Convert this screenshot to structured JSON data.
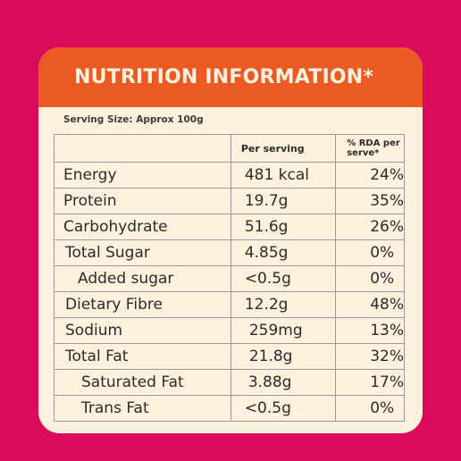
{
  "header": {
    "title": "NUTRITION INFORMATION*"
  },
  "serving_size": "Serving Size: Approx 100g",
  "table": {
    "headers": [
      "",
      "Per serving",
      "% RDA per serve*"
    ],
    "rows": [
      {
        "nutrient": "Energy",
        "per_serving": "481 kcal",
        "rda": "24%",
        "indent": 0
      },
      {
        "nutrient": "Protein",
        "per_serving": "19.7g",
        "rda": "35%",
        "indent": 0
      },
      {
        "nutrient": "Carbohydrate",
        "per_serving": "51.6g",
        "rda": "26%",
        "indent": 0
      },
      {
        "nutrient": "Total Sugar",
        "per_serving": "4.85g",
        "rda": "0%",
        "indent": 1
      },
      {
        "nutrient": "Added sugar",
        "per_serving": "<0.5g",
        "rda": "0%",
        "indent": 2
      },
      {
        "nutrient": "Dietary Fibre",
        "per_serving": "12.2g",
        "rda": "48%",
        "indent": 1
      },
      {
        "nutrient": "Sodium",
        "per_serving": "259mg",
        "rda": "13%",
        "indent": 1
      },
      {
        "nutrient": "Total Fat",
        "per_serving": "21.8g",
        "rda": "32%",
        "indent": 1
      },
      {
        "nutrient": "Saturated Fat",
        "per_serving": "3.88g",
        "rda": "17%",
        "indent": 3
      },
      {
        "nutrient": "Trans Fat",
        "per_serving": "<0.5g",
        "rda": "0%",
        "indent": 3
      }
    ]
  },
  "colors": {
    "background": "#d90b5a",
    "header": "#ec5a24",
    "card": "#fdf1dd"
  }
}
